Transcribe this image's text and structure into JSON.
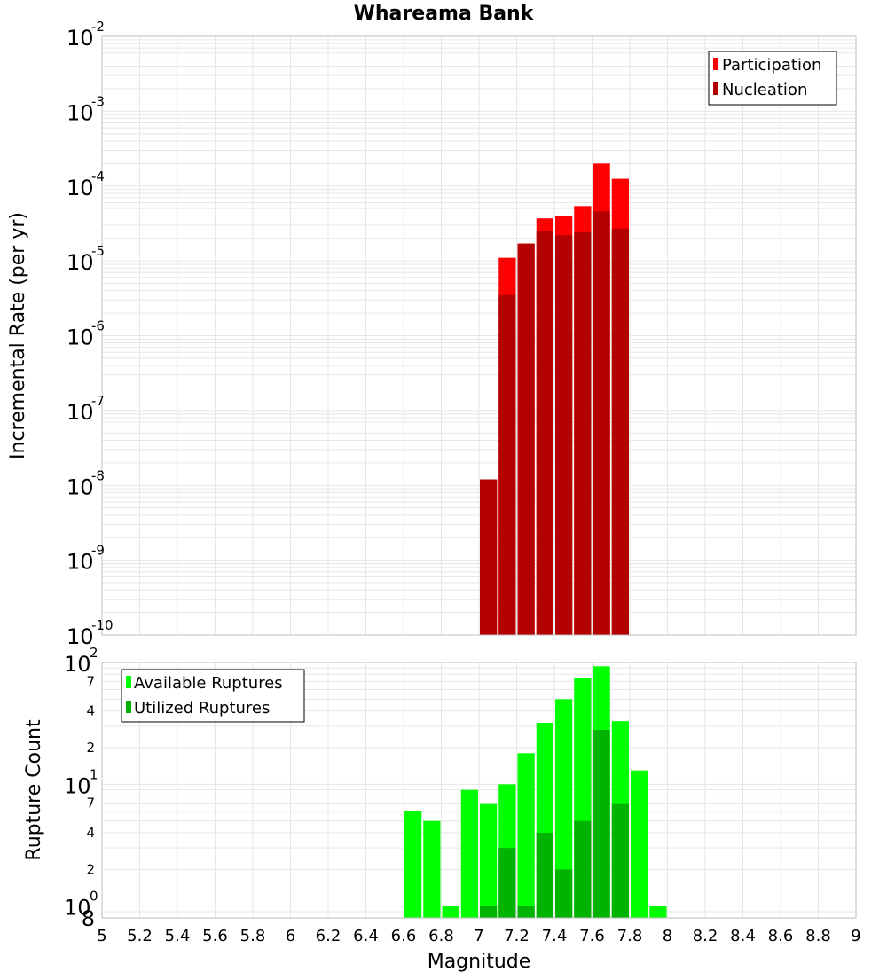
{
  "colors": {
    "participation": "#ff0000",
    "nucleation": "#b30000",
    "available": "#00ff00",
    "utilized": "#00b300",
    "grid": "#e6e6e6",
    "frame": "#bdbdbd"
  },
  "chart_data": [
    {
      "type": "bar",
      "title": "Whareama Bank",
      "xlabel": "",
      "ylabel": "Incremental Rate (per yr)",
      "yscale": "log",
      "xlim": [
        5,
        9
      ],
      "ylim": [
        1e-10,
        0.01
      ],
      "grid": true,
      "legend_position": "top-right",
      "y_ticks": [
        {
          "base": "10",
          "exp": "-2",
          "value": 0.01
        },
        {
          "base": "10",
          "exp": "-3",
          "value": 0.001
        },
        {
          "base": "10",
          "exp": "-4",
          "value": 0.0001
        },
        {
          "base": "10",
          "exp": "-5",
          "value": 1e-05
        },
        {
          "base": "10",
          "exp": "-6",
          "value": 1e-06
        },
        {
          "base": "10",
          "exp": "-7",
          "value": 1e-07
        },
        {
          "base": "10",
          "exp": "-8",
          "value": 1e-08
        },
        {
          "base": "10",
          "exp": "-9",
          "value": 1e-09
        },
        {
          "base": "10",
          "exp": "-10",
          "value": 1e-10
        }
      ],
      "series": [
        {
          "name": "Participation",
          "color": "#ff0000",
          "x": [
            7.05,
            7.15,
            7.25,
            7.35,
            7.45,
            7.55,
            7.65,
            7.75
          ],
          "values": [
            1.2e-08,
            1.1e-05,
            1.7e-05,
            3.7e-05,
            4e-05,
            5.4e-05,
            0.0002,
            0.000125
          ]
        },
        {
          "name": "Nucleation",
          "color": "#b30000",
          "x": [
            7.05,
            7.15,
            7.25,
            7.35,
            7.45,
            7.55,
            7.65,
            7.75
          ],
          "values": [
            1.2e-08,
            3.5e-06,
            1.7e-05,
            2.5e-05,
            2.2e-05,
            2.4e-05,
            4.6e-05,
            2.7e-05
          ]
        }
      ]
    },
    {
      "type": "bar",
      "title": "",
      "xlabel": "Magnitude",
      "ylabel": "Rupture Count",
      "yscale": "log",
      "xlim": [
        5,
        9
      ],
      "ylim": [
        0.8,
        100
      ],
      "grid": true,
      "legend_position": "top-left",
      "x_ticks": [
        "5",
        "5.2",
        "5.4",
        "5.6",
        "5.8",
        "6",
        "6.2",
        "6.4",
        "6.6",
        "6.8",
        "7",
        "7.2",
        "7.4",
        "7.6",
        "7.8",
        "8",
        "8.2",
        "8.4",
        "8.6",
        "8.8",
        "9"
      ],
      "y_ticks": [
        {
          "base": "10",
          "exp": "2",
          "value": 100
        },
        {
          "base": "10",
          "exp": "1",
          "value": 10
        },
        {
          "base": "10",
          "exp": "0",
          "value": 1
        }
      ],
      "y_minor_ticks": [
        {
          "label": "7",
          "value": 70
        },
        {
          "label": "4",
          "value": 40
        },
        {
          "label": "2",
          "value": 20
        },
        {
          "label": "7",
          "value": 7
        },
        {
          "label": "4",
          "value": 4
        },
        {
          "label": "2",
          "value": 2
        },
        {
          "label": "8",
          "value": 0.8
        }
      ],
      "series": [
        {
          "name": "Available Ruptures",
          "color": "#00ff00",
          "x": [
            6.65,
            6.75,
            6.85,
            6.95,
            7.05,
            7.15,
            7.25,
            7.35,
            7.45,
            7.55,
            7.65,
            7.75,
            7.85,
            7.95
          ],
          "values": [
            6,
            5,
            1,
            9,
            7,
            10,
            18,
            32,
            50,
            75,
            93,
            33,
            13,
            1
          ]
        },
        {
          "name": "Utilized Ruptures",
          "color": "#00b300",
          "x": [
            7.05,
            7.15,
            7.25,
            7.35,
            7.45,
            7.55,
            7.65,
            7.75
          ],
          "values": [
            1,
            3,
            1,
            4,
            2,
            5,
            28,
            7
          ]
        }
      ]
    }
  ]
}
